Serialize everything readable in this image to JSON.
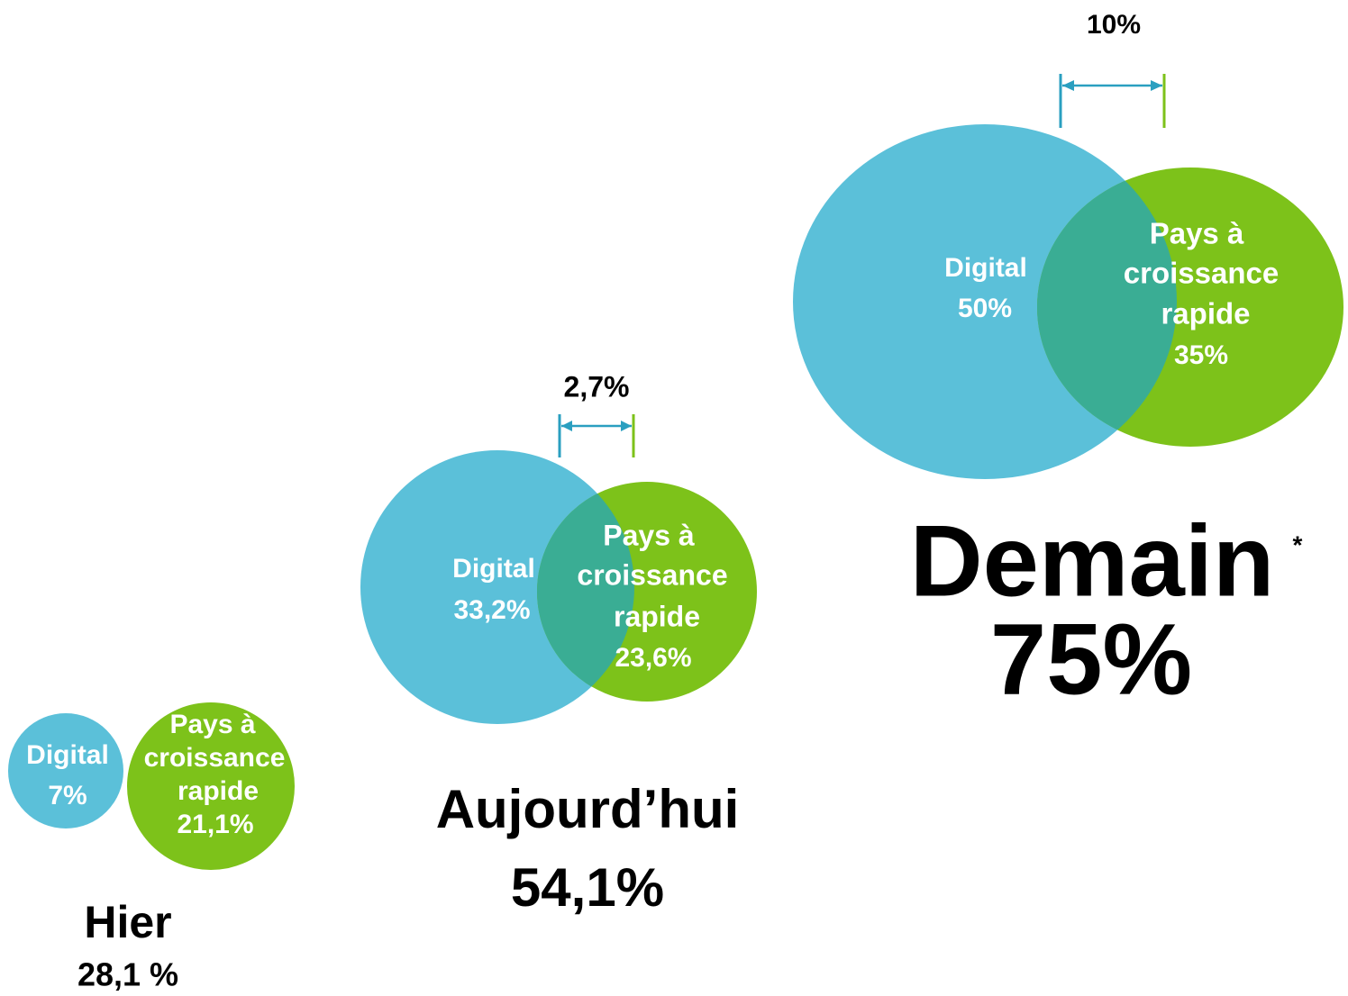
{
  "groups": [
    {
      "label": "Hier",
      "total": "28,1 %",
      "digital": {
        "label": "Digital",
        "value": "7%"
      },
      "pays": {
        "lines": [
          "Pays à",
          "croissance",
          "rapide"
        ],
        "value": "21,1%"
      }
    },
    {
      "label": "Aujourd’hui",
      "total": "54,1%",
      "overlap": "2,7%",
      "digital": {
        "label": "Digital",
        "value": "33,2%"
      },
      "pays": {
        "lines": [
          "Pays à",
          "croissance",
          "rapide"
        ],
        "value": "23,6%"
      }
    },
    {
      "label": "Demain",
      "total": "75%",
      "overlap": "10%",
      "note": "*",
      "digital": {
        "label": "Digital",
        "value": "50%"
      },
      "pays": {
        "lines": [
          "Pays à",
          "croissance",
          "rapide"
        ],
        "value": "35%"
      }
    }
  ]
}
